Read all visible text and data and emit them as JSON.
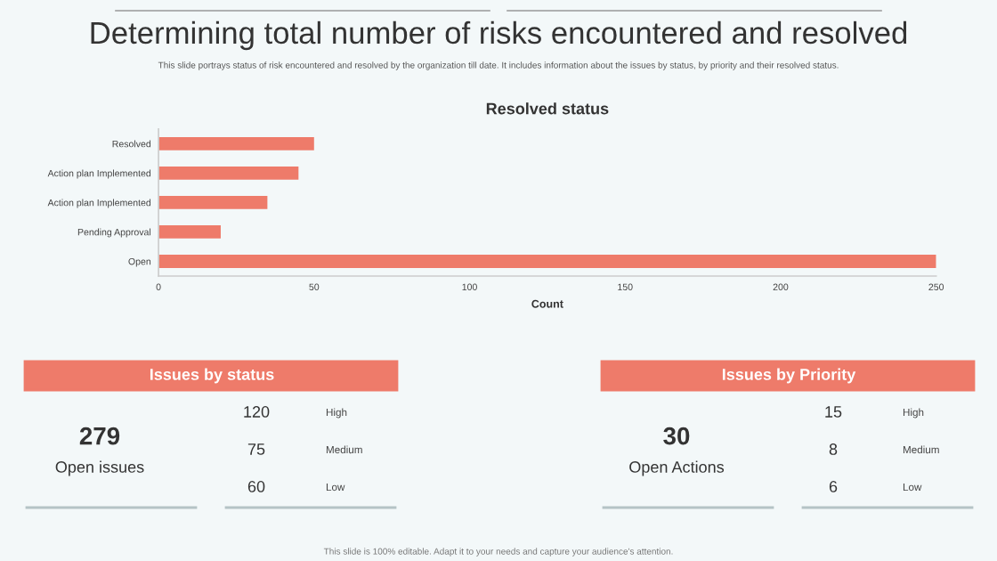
{
  "chart_data": [
    {
      "type": "other",
      "title": "Determining total number of risks encountered and resolved",
      "subtitle": "This slide portrays status of risk encountered and resolved by the organization till date. It includes information about the issues by status, by priority and their resolved status.",
      "annotations": [
        "This slide is 100% editable. Adapt it to your needs and capture your audience's attention."
      ]
    },
    {
      "type": "bar",
      "orientation": "horizontal",
      "title": "Resolved status",
      "xlabel": "Count",
      "categories": [
        "Resolved",
        "Action plan Implemented",
        "Action plan Implemented",
        "Pending Approval",
        "Open"
      ],
      "values": [
        50,
        45,
        35,
        20,
        250
      ],
      "color": "#ee7b6a",
      "xlim": [
        0,
        250
      ],
      "xticks": [
        0,
        50,
        100,
        150,
        200,
        250
      ],
      "grid": false
    },
    {
      "type": "other",
      "title": "Issues by status",
      "annotations": [
        "279",
        "Open issues"
      ],
      "categories": [
        "High",
        "Medium",
        "Low"
      ],
      "values": [
        120,
        75,
        60
      ],
      "data_labels": true,
      "color": "#ee7b6a"
    },
    {
      "type": "other",
      "title": "Issues by Priority",
      "annotations": [
        "30",
        "Open Actions"
      ],
      "categories": [
        "High",
        "Medium",
        "Low"
      ],
      "values": [
        15,
        8,
        6
      ],
      "data_labels": true,
      "color": "#ee7b6a"
    }
  ]
}
